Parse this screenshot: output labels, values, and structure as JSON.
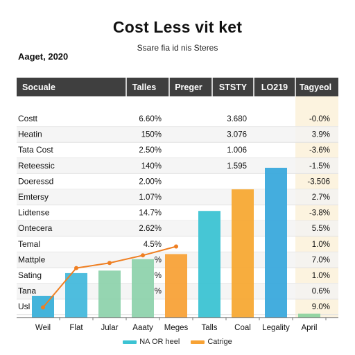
{
  "header": {
    "title": "Cost Less vit ket",
    "subtitle": "Ssare fia id nis Steres",
    "date": "Aaget, 2020"
  },
  "legend": [
    {
      "label": "NA OR heel",
      "color": "#3cc3d3"
    },
    {
      "label": "Catrige",
      "color": "#f7a234"
    }
  ],
  "colors": {
    "header_band": "#3f3f3f",
    "header_text": "#ffffff",
    "last_column_tint": "#fbf1d9",
    "line": "#ef7f22"
  },
  "table": {
    "columns": [
      "Socuale",
      "Talles",
      "Preger",
      "STSTY",
      "LO219",
      "Tagyeol"
    ],
    "rows": [
      {
        "label": "Costt",
        "c1": "6.60%",
        "c3": "3.680",
        "c5": "-0.0%"
      },
      {
        "label": "Heatin",
        "c1": "150%",
        "c3": "3.076",
        "c5": "3.9%"
      },
      {
        "label": "Tata Cost",
        "c1": "2.50%",
        "c3": "1.006",
        "c5": "-3.6%"
      },
      {
        "label": "Reteessic",
        "c1": "140%",
        "c3": "1.595",
        "c5": "-1.5%"
      },
      {
        "label": "Doeressd",
        "c1": "2.00%",
        "c3": "",
        "c5": "-3.506"
      },
      {
        "label": "Emtersy",
        "c1": "1.07%",
        "c3": "",
        "c5": "2.7%"
      },
      {
        "label": "Lidtense",
        "c1": "14.7%",
        "c3": "",
        "c5": "-3.8%"
      },
      {
        "label": "Ontecera",
        "c1": "2.62%",
        "c3": "",
        "c5": "5.5%"
      },
      {
        "label": "Temal",
        "c1": "4.5%",
        "c3": "",
        "c5": "1.0%"
      },
      {
        "label": "Mattple",
        "c1": "%",
        "c3": "",
        "c5": "7.0%"
      },
      {
        "label": "Sating",
        "c1": "%",
        "c3": "",
        "c5": "1.0%"
      },
      {
        "label": "Tana",
        "c1": "%",
        "c3": "",
        "c5": "0.6%"
      },
      {
        "label": "Usl",
        "c1": "",
        "c3": "",
        "c5": "9.0%"
      }
    ]
  },
  "chart_data": {
    "type": "bar",
    "categories": [
      "Weil",
      "Flat",
      "Jular",
      "Aaaty",
      "Meges",
      "Talls",
      "Coal",
      "Legality",
      "April"
    ],
    "series": [
      {
        "name": "NA OR heel",
        "values": [
          1.7,
          3.5,
          3.7,
          4.6,
          5.0,
          8.4,
          10.1,
          11.8,
          0.3
        ],
        "colors": [
          "#3ab0d9",
          "#45b9dc",
          "#8fd3ad",
          "#8fd3ad",
          "#f8a238",
          "#3cc3d3",
          "#f7a934",
          "#3aa9dc",
          "#8ed39f"
        ]
      },
      {
        "name": "",
        "type": "line",
        "values": [
          0.8,
          3.9,
          4.3,
          4.9,
          5.6,
          null,
          null,
          null,
          null
        ]
      }
    ],
    "ylim": [
      0,
      13
    ]
  }
}
